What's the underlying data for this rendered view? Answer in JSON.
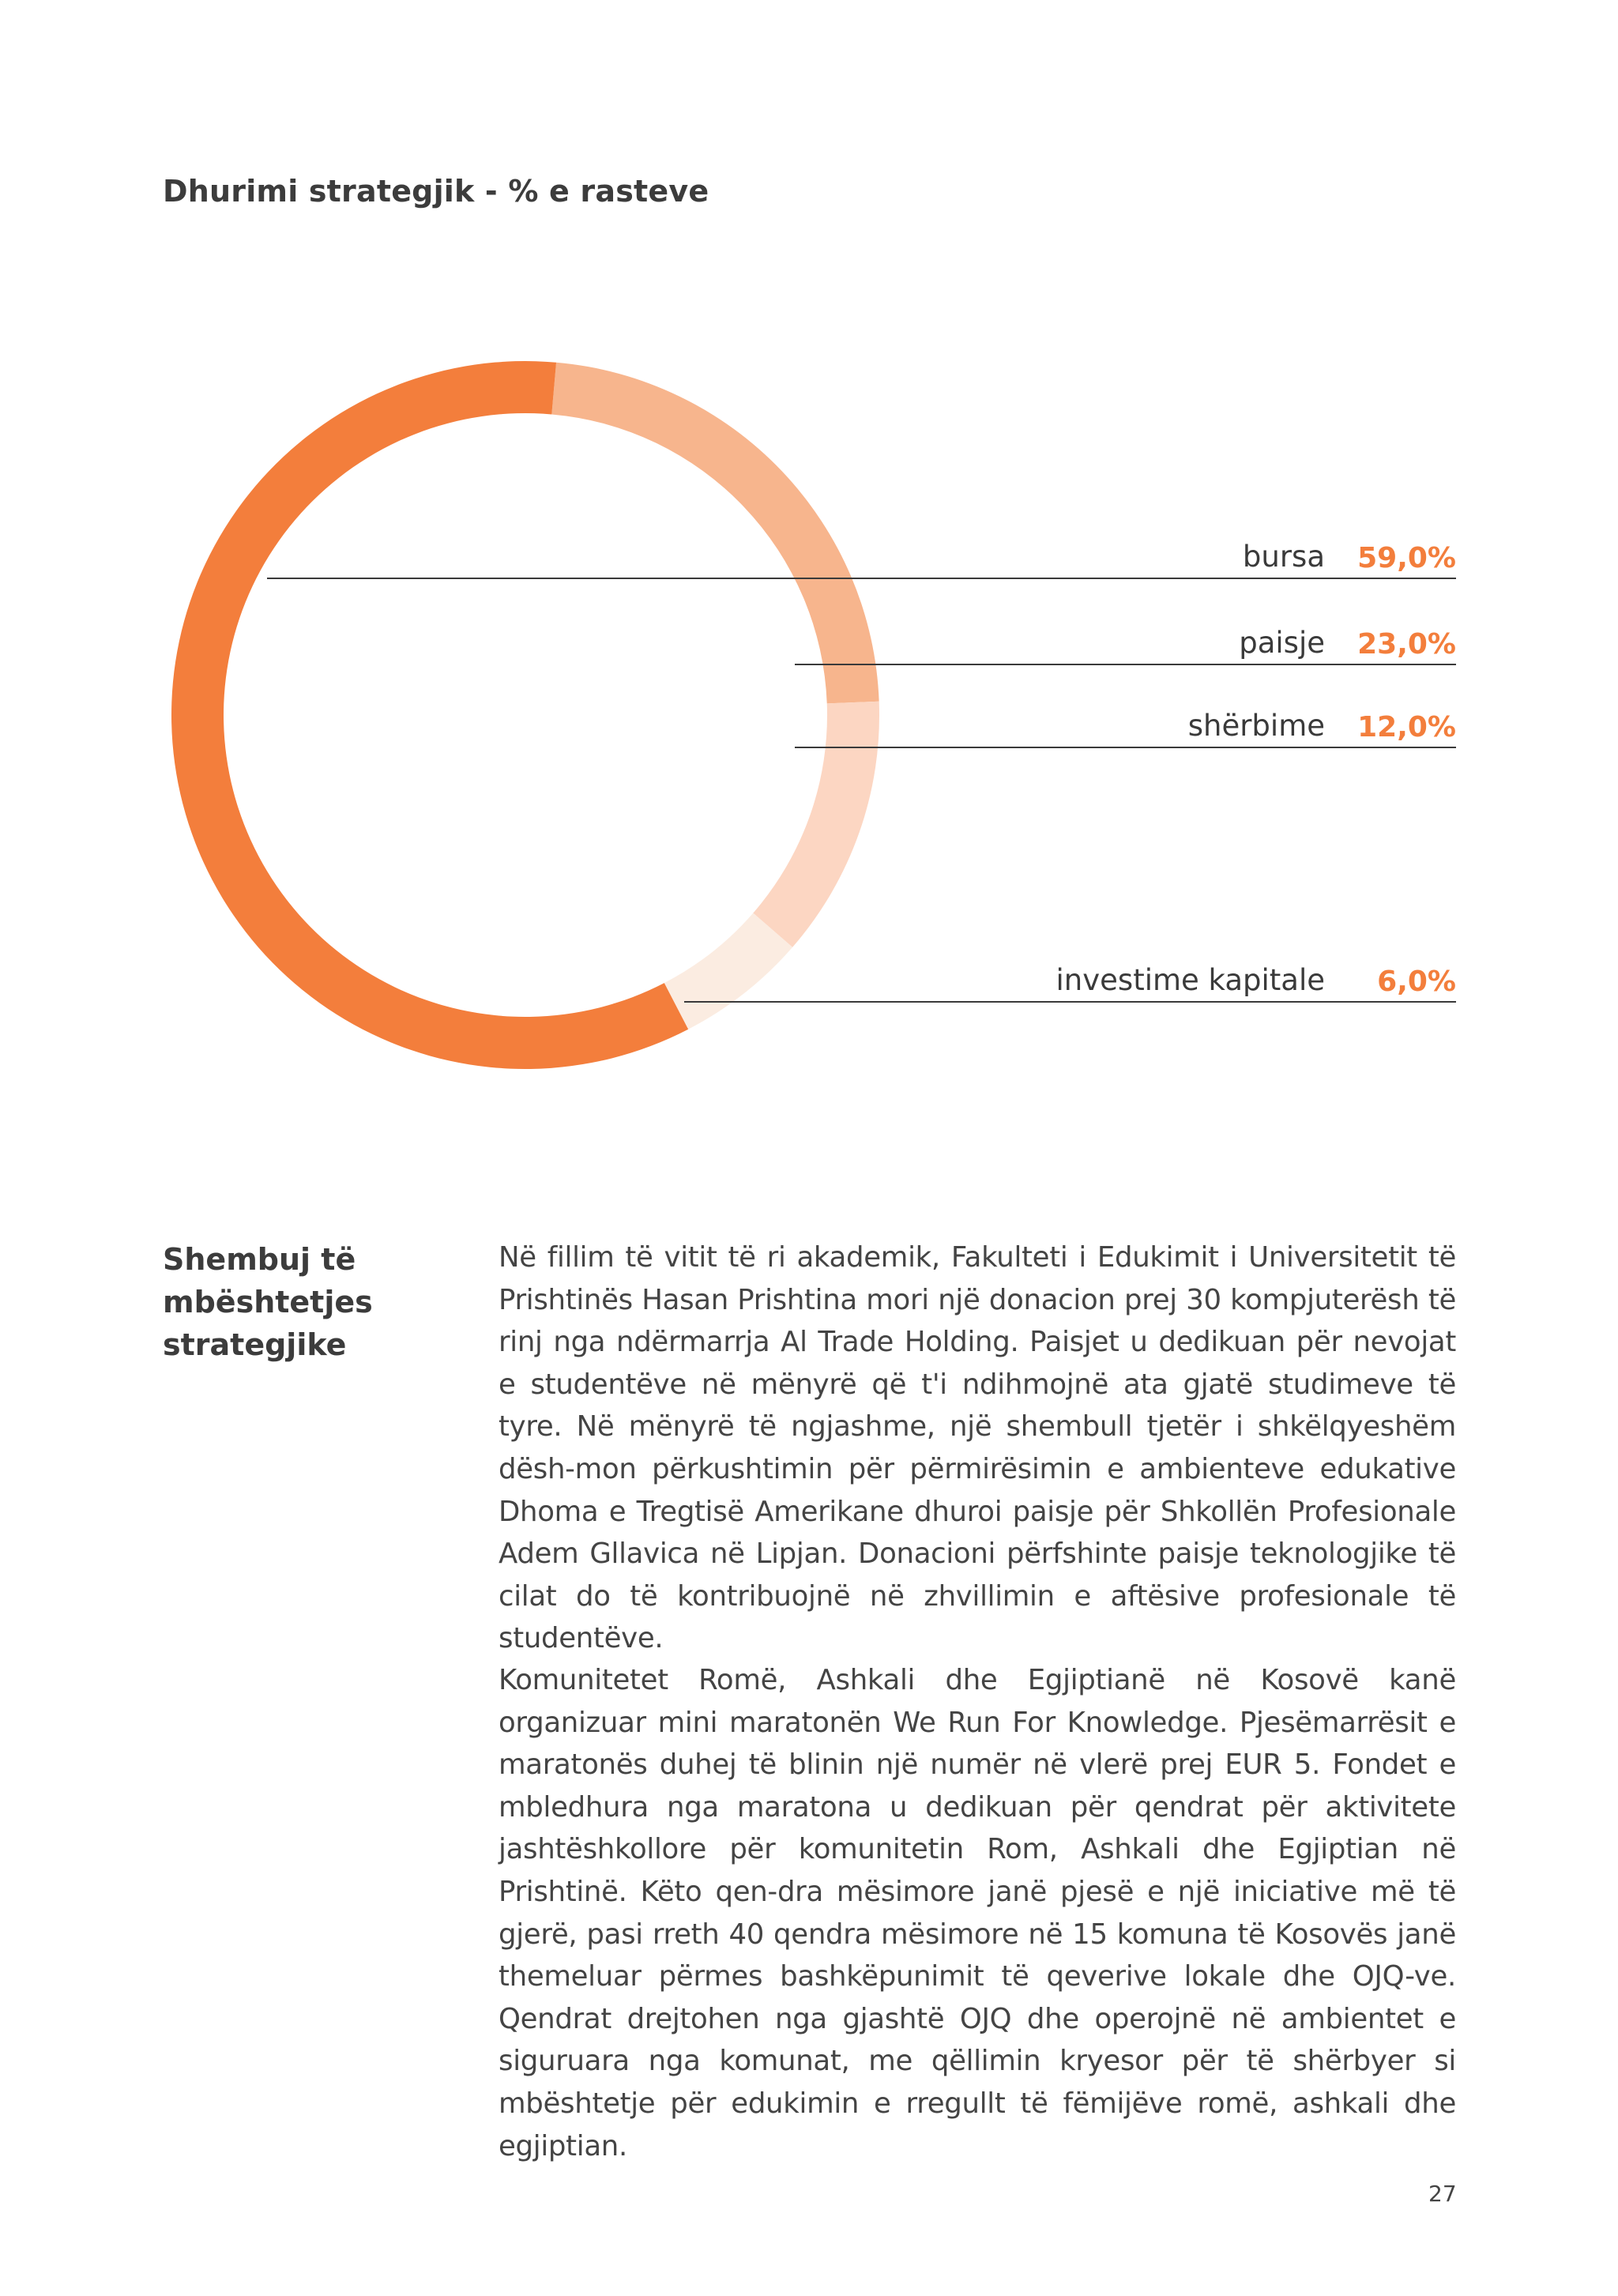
{
  "page": {
    "title": "Dhurimi strategjik - % e rasteve",
    "page_number": "27"
  },
  "chart_data": {
    "type": "pie",
    "title": "Dhurimi strategjik - % e rasteve",
    "categories": [
      "bursa",
      "paisje",
      "shërbime",
      "investime kapitale"
    ],
    "values": [
      59.0,
      23.0,
      12.0,
      6.0
    ],
    "value_labels": [
      "59,0%",
      "23,0%",
      "12,0%",
      "6,0%"
    ],
    "colors": [
      "#f37e3c",
      "#f7b58d",
      "#fcd6c2",
      "#fbece1"
    ],
    "label_color": "#f37e3c",
    "legend_position": "right"
  },
  "section": {
    "heading_lines": [
      "Shembuj të",
      "mbështetjes",
      "strategjike"
    ],
    "paragraphs": [
      "Në fillim të vitit të ri akademik, Fakulteti i Edukimit i Universitetit të Prishtinës Hasan Prishtina mori një donacion prej 30 kompjuterësh të rinj nga ndërmarrja Al Trade Holding. Paisjet u dedikuan për nevojat e studentëve në mënyrë që t'i ndihmojnë ata gjatë studimeve të tyre. Në mënyrë të ngjashme, një shembull tjetër i shkëlqyeshëm dësh-mon përkushtimin për përmirësimin e ambienteve edukative Dhoma e Tregtisë Amerikane dhuroi paisje për Shkollën Profesionale Adem Gllavica në Lipjan. Donacioni përfshinte paisje teknologjike të cilat do të kontribuojnë në zhvillimin e aftësive profesionale të studentëve.",
      "Komunitetet Romë, Ashkali dhe Egjiptianë në Kosovë kanë organizuar mini maratonën We Run For Knowledge. Pjesëmarrësit e maratonës duhej të blinin një numër në vlerë prej EUR 5. Fondet e mbledhura nga maratona u dedikuan për qendrat për aktivitete jashtëshkollore për komunitetin Rom, Ashkali dhe Egjiptian në Prishtinë. Këto qen-dra mësimore janë pjesë e një iniciative më të gjerë, pasi rreth 40 qendra mësimore në 15 komuna të Kosovës janë themeluar përmes bashkëpunimit të qeverive lokale dhe OJQ-ve. Qendrat drejtohen nga gjashtë OJQ dhe operojnë në ambientet e siguruara nga komunat, me qëllimin kryesor për të shërbyer si mbështetje për edukimin e rregullt të fëmijëve romë, ashkali dhe egjiptian."
    ]
  }
}
